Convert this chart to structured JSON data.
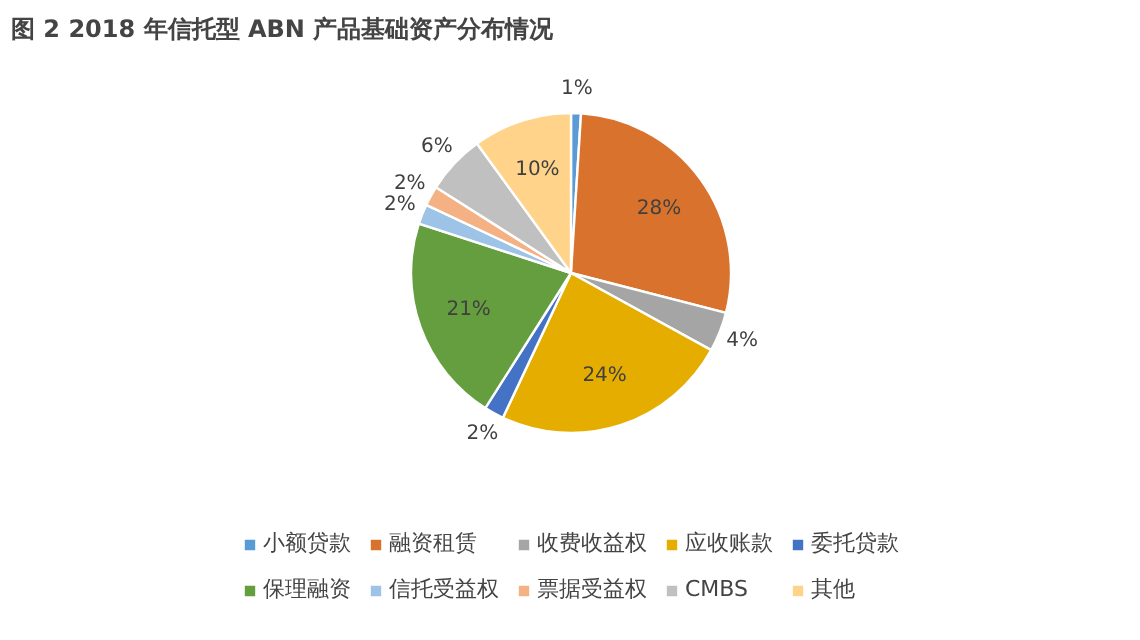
{
  "chart_data": {
    "type": "pie",
    "title": "图 2 2018 年信托型 ABN 产品基础资产分布情况",
    "categories": [
      "小额贷款",
      "融资租赁",
      "收费收益权",
      "应收账款",
      "委托贷款",
      "保理融资",
      "信托受益权",
      "票据受益权",
      "CMBS",
      "其他"
    ],
    "values": [
      1,
      28,
      4,
      24,
      2,
      21,
      2,
      2,
      6,
      10
    ],
    "value_labels": [
      "1%",
      "28%",
      "4%",
      "24%",
      "2%",
      "21%",
      "2%",
      "2%",
      "6%",
      "10%"
    ],
    "colors": [
      "#5b9bd5",
      "#d9722c",
      "#a5a5a5",
      "#e5ad00",
      "#4472c4",
      "#659e3f",
      "#9dc3e6",
      "#f4b183",
      "#c0c0c0",
      "#ffd48a"
    ],
    "legend": "bottom"
  }
}
